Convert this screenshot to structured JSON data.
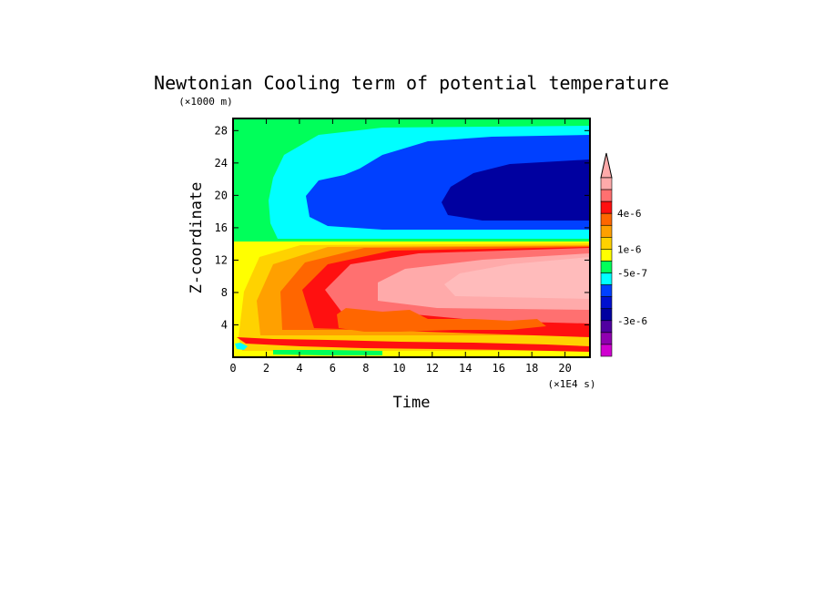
{
  "chart_data": {
    "type": "heatmap",
    "title": "Newtonian Cooling term of potential temperature",
    "xlabel": "Time",
    "ylabel": "Z-coordinate",
    "x_unit": "(×1E4 s)",
    "y_unit": "(×1000 m)",
    "xlim": [
      0,
      21.5
    ],
    "ylim": [
      0,
      29.5
    ],
    "x_ticks": [
      0,
      2,
      4,
      6,
      8,
      10,
      12,
      14,
      16,
      18,
      20
    ],
    "y_ticks": [
      4,
      8,
      12,
      16,
      20,
      24,
      28
    ],
    "colorbar": {
      "colors": [
        "#ffaaaa",
        "#ff7070",
        "#ff1010",
        "#ff6600",
        "#ffa000",
        "#ffd200",
        "#ffff00",
        "#00ff5a",
        "#00ffff",
        "#0040ff",
        "#0010d0",
        "#0000a0",
        "#5000a0",
        "#9000b0",
        "#d000d0"
      ],
      "tick_labels": [
        "4e-6",
        "1e-6",
        "-5e-7",
        "-3e-6"
      ],
      "extend": "top"
    },
    "regions": [
      {
        "name": "upper-background",
        "level": "-5e-7 to 0",
        "color": "#00ff5a"
      },
      {
        "name": "cyan-band",
        "level": "-1e-6 to -5e-7",
        "color": "#00ffff"
      },
      {
        "name": "blue-band",
        "level": "-2e-6 to -1e-6",
        "color": "#0040ff"
      },
      {
        "name": "dark-blue-core",
        "level": "< -2e-6",
        "color": "#0000a0"
      },
      {
        "name": "lower-background",
        "level": "0 to 5e-7",
        "color": "#ffff00"
      },
      {
        "name": "warm-layers",
        "level": "5e-7 to 6e-6",
        "color": "#ffaaaa"
      }
    ]
  }
}
